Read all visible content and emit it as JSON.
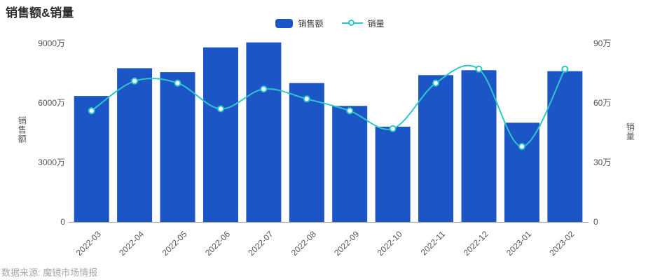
{
  "page": {
    "title": "销售额&销量",
    "source": "数据来源: 魔镜市场情报"
  },
  "colors": {
    "background": "#ffffff",
    "bar": "#1c55c5",
    "line": "#2ec7c9",
    "marker_fill": "#ffffff",
    "title_text": "#2b2b2b",
    "legend_text": "#333333",
    "axis_text": "#555555",
    "axis_line": "#999999",
    "source_text": "#a6a6a6"
  },
  "chart_data": {
    "type": "bar",
    "title": "销售额&销量",
    "categories": [
      "2022-03",
      "2022-04",
      "2022-05",
      "2022-06",
      "2022-07",
      "2022-08",
      "2022-09",
      "2022-10",
      "2022-11",
      "2022-12",
      "2023-01",
      "2023-02"
    ],
    "series": [
      {
        "name": "销售额",
        "type": "bar",
        "axis": "left",
        "unit": "万",
        "values": [
          6350,
          7750,
          7550,
          8800,
          9050,
          7000,
          5850,
          4800,
          7400,
          7650,
          5000,
          7600
        ]
      },
      {
        "name": "销量",
        "type": "line",
        "axis": "right",
        "unit": "万",
        "smooth": true,
        "values": [
          56,
          71,
          70,
          57,
          67,
          62,
          56,
          47,
          70,
          77,
          38,
          77
        ]
      }
    ],
    "left_axis": {
      "label": "销售额",
      "min": 0,
      "max": 9000,
      "ticks": [
        "0",
        "3000万",
        "6000万",
        "9000万"
      ]
    },
    "right_axis": {
      "label": "销量",
      "min": 0,
      "max": 90,
      "ticks": [
        "0",
        "30万",
        "60万",
        "90万"
      ]
    },
    "x_axis": {
      "label_rotate": -45
    },
    "grid": false,
    "legend_position": "top"
  }
}
